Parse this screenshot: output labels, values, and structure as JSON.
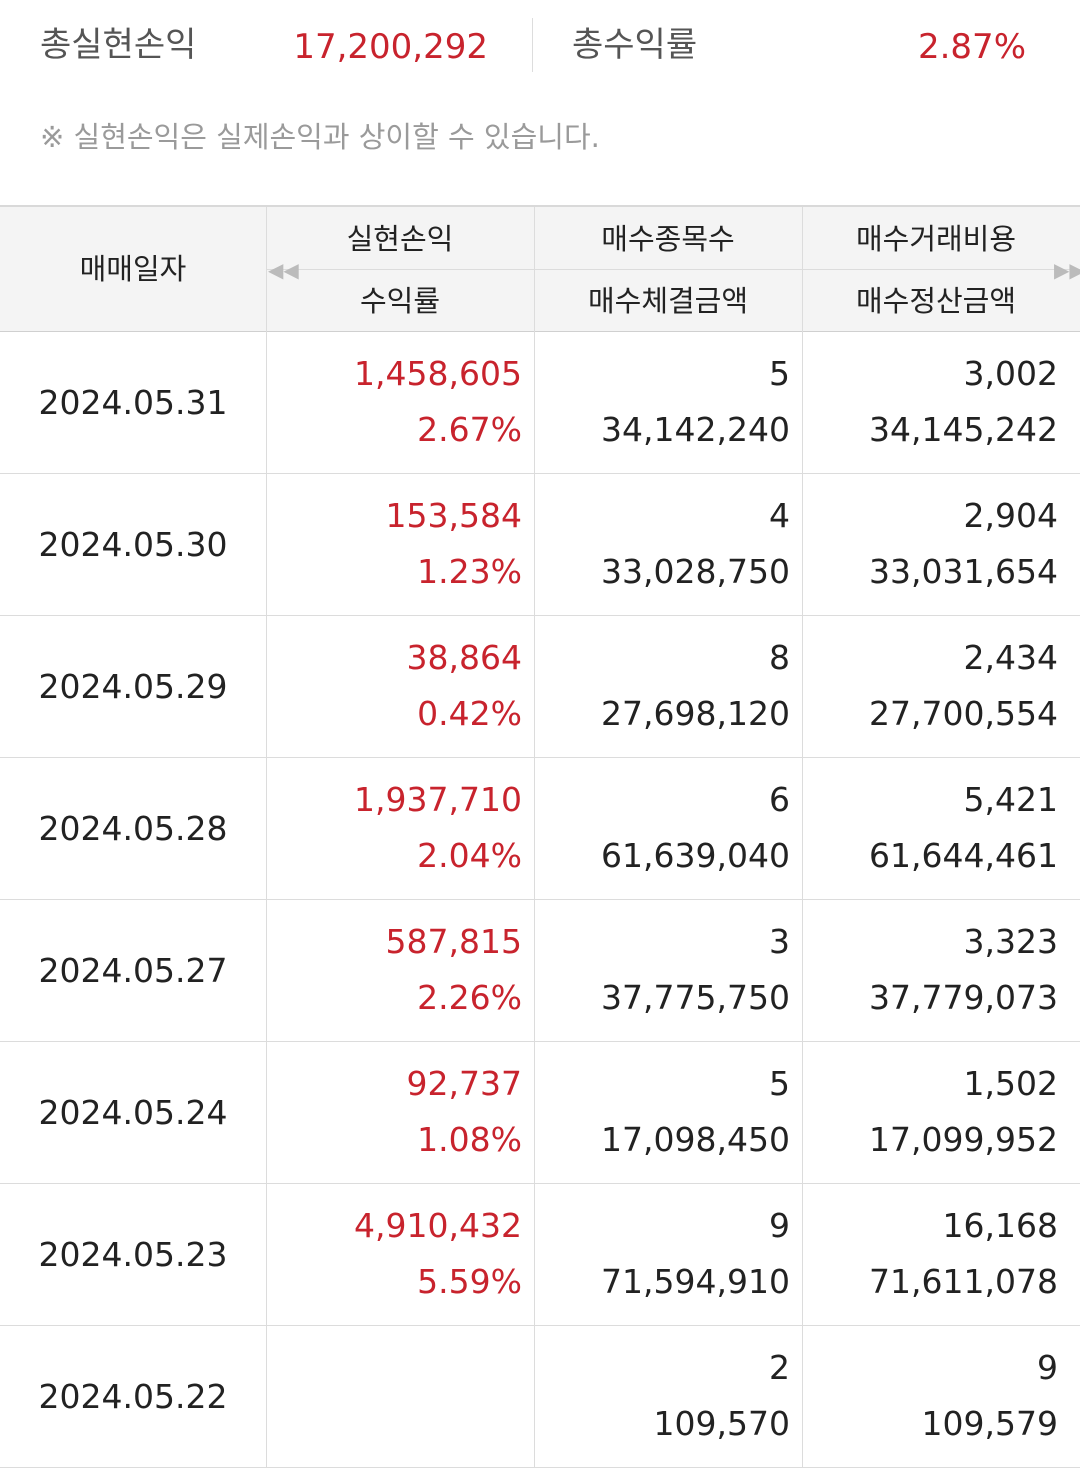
{
  "summary": {
    "total_realized_label": "총실현손익",
    "total_realized_value": "17,200,292",
    "total_return_label": "총수익률",
    "total_return_value": "2.87%"
  },
  "notice": "※ 실현손익은 실제손익과 상이할 수 있습니다.",
  "colors": {
    "profit": "#c8232d",
    "text": "#222222",
    "header_bg": "#f4f4f4",
    "muted": "#9a9a9a"
  },
  "table": {
    "headers": {
      "date": "매매일자",
      "realized_top": "실현손익",
      "realized_bottom": "수익률",
      "buy_count_top": "매수종목수",
      "buy_count_bottom": "매수체결금액",
      "buy_cost_top": "매수거래비용",
      "buy_cost_bottom": "매수정산금액"
    },
    "scroll_left_icon": "double-chevron-left-icon",
    "scroll_right_icon": "double-chevron-right-icon",
    "rows": [
      {
        "date": "2024.05.31",
        "realized": "1,458,605",
        "return": "2.67%",
        "buy_count": "5",
        "buy_amount": "34,142,240",
        "buy_cost": "3,002",
        "settle_amount": "34,145,242"
      },
      {
        "date": "2024.05.30",
        "realized": "153,584",
        "return": "1.23%",
        "buy_count": "4",
        "buy_amount": "33,028,750",
        "buy_cost": "2,904",
        "settle_amount": "33,031,654"
      },
      {
        "date": "2024.05.29",
        "realized": "38,864",
        "return": "0.42%",
        "buy_count": "8",
        "buy_amount": "27,698,120",
        "buy_cost": "2,434",
        "settle_amount": "27,700,554"
      },
      {
        "date": "2024.05.28",
        "realized": "1,937,710",
        "return": "2.04%",
        "buy_count": "6",
        "buy_amount": "61,639,040",
        "buy_cost": "5,421",
        "settle_amount": "61,644,461"
      },
      {
        "date": "2024.05.27",
        "realized": "587,815",
        "return": "2.26%",
        "buy_count": "3",
        "buy_amount": "37,775,750",
        "buy_cost": "3,323",
        "settle_amount": "37,779,073"
      },
      {
        "date": "2024.05.24",
        "realized": "92,737",
        "return": "1.08%",
        "buy_count": "5",
        "buy_amount": "17,098,450",
        "buy_cost": "1,502",
        "settle_amount": "17,099,952"
      },
      {
        "date": "2024.05.23",
        "realized": "4,910,432",
        "return": "5.59%",
        "buy_count": "9",
        "buy_amount": "71,594,910",
        "buy_cost": "16,168",
        "settle_amount": "71,611,078"
      },
      {
        "date": "2024.05.22",
        "realized": "",
        "return": "",
        "buy_count": "2",
        "buy_amount": "109,570",
        "buy_cost": "9",
        "settle_amount": "109,579"
      }
    ]
  }
}
